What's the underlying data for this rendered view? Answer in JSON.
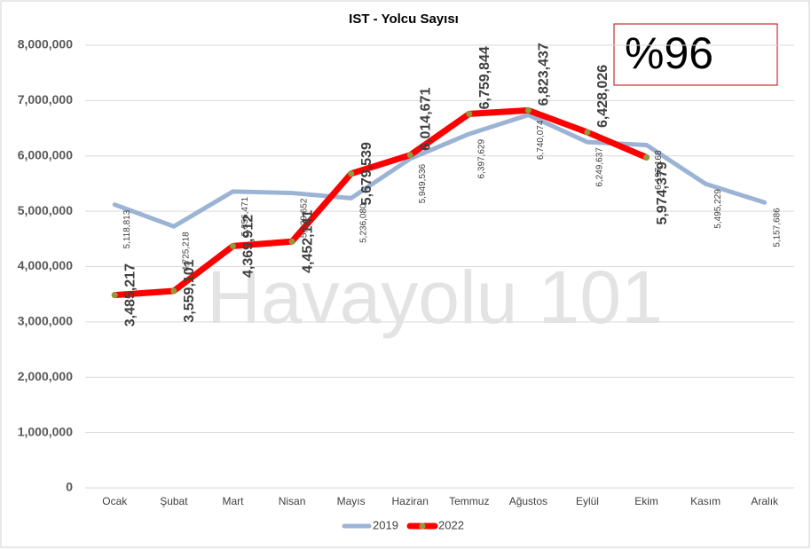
{
  "chart_data": {
    "type": "line",
    "title": "IST - Yolcu Sayısı",
    "annotations": [
      "%96",
      "Havayolu 101"
    ],
    "categories": [
      "Ocak",
      "Şubat",
      "Mart",
      "Nisan",
      "Mayıs",
      "Haziran",
      "Temmuz",
      "Ağustos",
      "Eylül",
      "Ekim",
      "Kasım",
      "Aralık"
    ],
    "series": [
      {
        "name": "2019",
        "color": "#9bb3d4",
        "values": [
          5118813,
          4725218,
          5356471,
          5329652,
          5236080,
          5949536,
          6397629,
          6740074,
          6249637,
          6197168,
          5495229,
          5157686
        ],
        "value_labels": [
          "5,118,813",
          "4,725,218",
          "5,356,471",
          "5,329,652",
          "5,236,080",
          "5,949,536",
          "6,397,629",
          "6,740,074",
          "6,249,637",
          "6,197,168",
          "5,495,229",
          "5,157,686"
        ]
      },
      {
        "name": "2022",
        "color": "#ff0000",
        "values": [
          3485217,
          3559101,
          4369912,
          4452141,
          5679539,
          6014671,
          6759844,
          6823437,
          6428026,
          5974379,
          null,
          null
        ],
        "value_labels": [
          "3,485,217",
          "3,559,101",
          "4,369,912",
          "4,452,141",
          "5,679,539",
          "6,014,671",
          "6,759,844",
          "6,823,437",
          "6,428,026",
          "5,974,379",
          null,
          null
        ]
      }
    ],
    "ylim": [
      0,
      8000000
    ],
    "yticks": [
      0,
      {
        "value": 1000000,
        "label": "1,000,000"
      },
      {
        "value": 2000000,
        "label": "2,000,000"
      },
      {
        "value": 3000000,
        "label": "3,000,000"
      },
      {
        "value": 4000000,
        "label": "4,000,000"
      },
      {
        "value": 5000000,
        "label": "5,000,000"
      },
      {
        "value": 6000000,
        "label": "6,000,000"
      },
      {
        "value": 7000000,
        "label": "7,000,000"
      },
      {
        "value": 8000000,
        "label": "8,000,000"
      }
    ],
    "grid": true,
    "legend": "bottom"
  }
}
